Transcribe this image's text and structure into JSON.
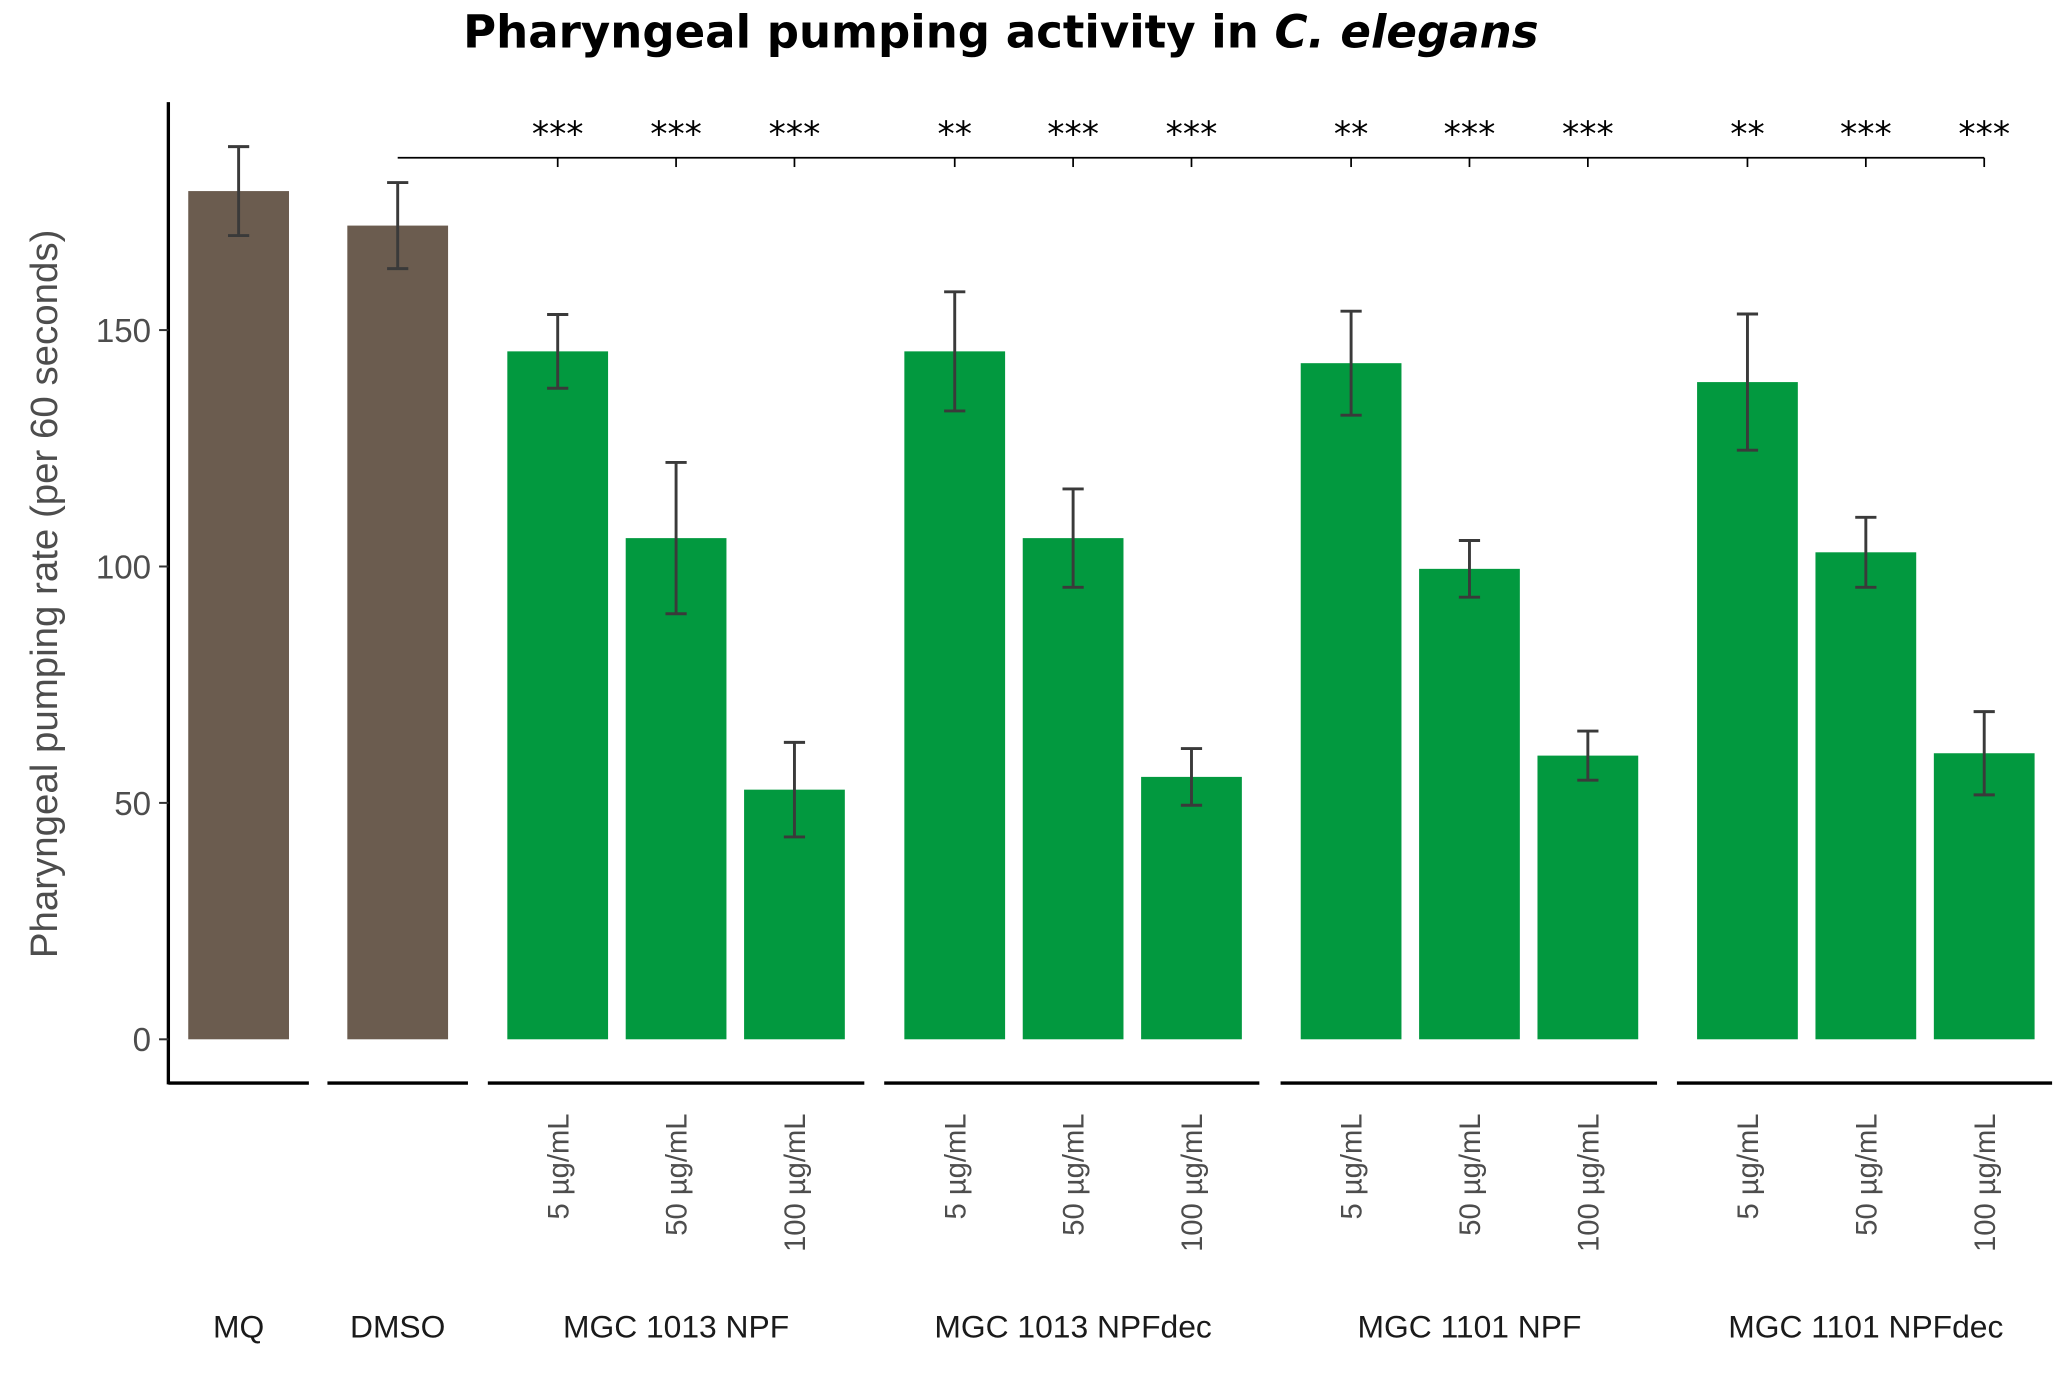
{
  "chart_data": {
    "type": "bar",
    "title": "Pharyngeal pumping activity in",
    "title_italic": "C. elegans",
    "xlabel": "",
    "ylabel": "Pharyngeal pumping rate (per 60 seconds)",
    "ylim": [
      -9,
      192
    ],
    "yticks": [
      0,
      50,
      100,
      150
    ],
    "grid": false,
    "colors": {
      "control": "#6b5c4f",
      "treatment": "#02993f",
      "error": "#3a3a3a"
    },
    "groups": [
      {
        "label": "MQ",
        "bars": [
          {
            "dose": "",
            "value": 179.4,
            "error": 9.4,
            "kind": "control",
            "sig": ""
          }
        ]
      },
      {
        "label": "DMSO",
        "bars": [
          {
            "dose": "",
            "value": 172.1,
            "error": 9.1,
            "kind": "control",
            "sig": ""
          }
        ]
      },
      {
        "label": "MGC 1013 NPF",
        "bars": [
          {
            "dose": "5 µg/mL",
            "value": 145.5,
            "error": 7.8,
            "kind": "treatment",
            "sig": "***"
          },
          {
            "dose": "50 µg/mL",
            "value": 106,
            "error": 16,
            "kind": "treatment",
            "sig": "***"
          },
          {
            "dose": "100 µg/mL",
            "value": 52.8,
            "error": 10,
            "kind": "treatment",
            "sig": "***"
          }
        ]
      },
      {
        "label": "MGC 1013 NPFdec",
        "bars": [
          {
            "dose": "5 µg/mL",
            "value": 145.5,
            "error": 12.6,
            "kind": "treatment",
            "sig": "**"
          },
          {
            "dose": "50 µg/mL",
            "value": 106,
            "error": 10.4,
            "kind": "treatment",
            "sig": "***"
          },
          {
            "dose": "100 µg/mL",
            "value": 55.5,
            "error": 6,
            "kind": "treatment",
            "sig": "***"
          }
        ]
      },
      {
        "label": "MGC 1101 NPF",
        "bars": [
          {
            "dose": "5 µg/mL",
            "value": 143,
            "error": 11,
            "kind": "treatment",
            "sig": "**"
          },
          {
            "dose": "50 µg/mL",
            "value": 99.5,
            "error": 6,
            "kind": "treatment",
            "sig": "***"
          },
          {
            "dose": "100 µg/mL",
            "value": 60,
            "error": 5.2,
            "kind": "treatment",
            "sig": "***"
          }
        ]
      },
      {
        "label": "MGC 1101 NPFdec",
        "bars": [
          {
            "dose": "5 µg/mL",
            "value": 139,
            "error": 14.4,
            "kind": "treatment",
            "sig": "**"
          },
          {
            "dose": "50 µg/mL",
            "value": 103,
            "error": 7.4,
            "kind": "treatment",
            "sig": "***"
          },
          {
            "dose": "100 µg/mL",
            "value": 60.5,
            "error": 8.8,
            "kind": "treatment",
            "sig": "***"
          }
        ]
      }
    ],
    "comparison_reference": "DMSO"
  }
}
